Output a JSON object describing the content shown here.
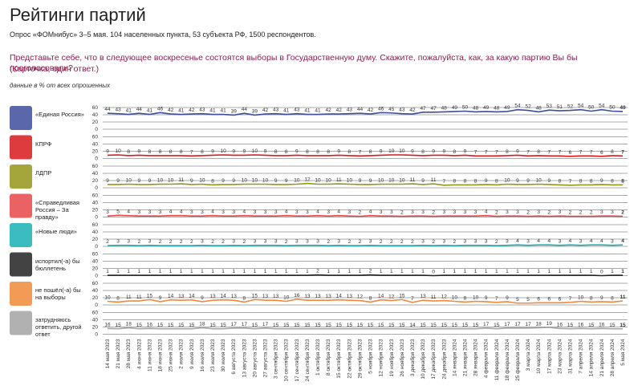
{
  "chart_data": {
    "type": "line",
    "title": "Рейтинги партий",
    "subtitle": "Опрос «ФОМнибус» 3–5 мая. 104 населенных пункта, 53 субъекта РФ, 1500 респондентов.",
    "question": "Представьте себе, что в следующее воскресенье состоятся выборы в Государственную думу. Скажите, пожалуйста, как, за какую партию Вы бы проголосовали?",
    "note": "(Карточка, один ответ.)",
    "data_note": "данные в % от всех опрошенных",
    "categories": [
      "14 мая 2023",
      "21 мая 2023",
      "28 мая 2023",
      "4 июня 2023",
      "11 июня 2023",
      "18 июня 2023",
      "25 июня 2023",
      "2 июля 2023",
      "9 июля 2023",
      "16 июля 2023",
      "23 июля 2023",
      "30 июля 2023",
      "6 августа 2023",
      "13 августа 2023",
      "20 августа 2023",
      "27 августа 2023",
      "3 сентября 2023",
      "10 сентября 2023",
      "17 сентября 2023",
      "24 сентября 2023",
      "1 октября 2023",
      "8 октября 2023",
      "15 октября 2023",
      "22 октября 2023",
      "29 октября 2023",
      "5 ноября 2023",
      "12 ноября 2023",
      "19 ноября 2023",
      "26 ноября 2023",
      "3 декабря 2023",
      "10 декабря 2023",
      "17 декабря 2023",
      "24 декабря 2023",
      "14 января 2024",
      "21 января 2024",
      "28 января 2024",
      "4 февраля 2024",
      "11 февраля 2024",
      "18 февраля 2024",
      "25 февраля 2024",
      "3 марта 2024",
      "10 марта 2024",
      "17 марта 2024",
      "23 марта 2024",
      "31 марта 2024",
      "7 апреля 2024",
      "14 апреля 2024",
      "21 апреля 2024",
      "28 апреля 2024",
      "5 мая 2024"
    ],
    "ylim": [
      0,
      60
    ],
    "yticks": [
      0,
      20,
      40,
      60
    ],
    "series": [
      {
        "name": "«Единая Россия»",
        "color": "#3d4c9c",
        "values": [
          44,
          43,
          41,
          44,
          41,
          46,
          42,
          41,
          42,
          43,
          41,
          41,
          39,
          44,
          39,
          42,
          43,
          41,
          43,
          41,
          41,
          42,
          42,
          43,
          44,
          42,
          46,
          45,
          43,
          42,
          47,
          47,
          48,
          49,
          50,
          48,
          49,
          48,
          49,
          54,
          52,
          48,
          53,
          51,
          52,
          54,
          50,
          54,
          50,
          49
        ]
      },
      {
        "name": "КПРФ",
        "color": "#d7191c",
        "values": [
          9,
          10,
          8,
          9,
          8,
          8,
          8,
          8,
          7,
          8,
          9,
          10,
          9,
          9,
          10,
          9,
          8,
          8,
          9,
          8,
          8,
          8,
          9,
          8,
          7,
          8,
          9,
          10,
          10,
          9,
          8,
          9,
          9,
          8,
          9,
          7,
          7,
          7,
          8,
          9,
          7,
          8,
          7,
          7,
          6,
          7,
          7,
          6,
          8,
          7
        ]
      },
      {
        "name": "ЛДПР",
        "color": "#94961a",
        "values": [
          9,
          9,
          10,
          9,
          9,
          10,
          10,
          11,
          9,
          10,
          8,
          9,
          9,
          10,
          10,
          10,
          9,
          9,
          10,
          12,
          10,
          10,
          11,
          10,
          9,
          9,
          10,
          10,
          10,
          11,
          9,
          11,
          7,
          8,
          8,
          8,
          9,
          8,
          10,
          9,
          9,
          10,
          9,
          8,
          7,
          8,
          8,
          9,
          8,
          8
        ]
      },
      {
        "name": "«Справедливая Россия – За правду»",
        "color": "#e8474a",
        "values": [
          3,
          5,
          4,
          3,
          3,
          3,
          4,
          4,
          3,
          3,
          4,
          3,
          3,
          4,
          3,
          3,
          3,
          4,
          3,
          3,
          4,
          3,
          4,
          3,
          2,
          4,
          3,
          3,
          2,
          3,
          3,
          2,
          3,
          3,
          3,
          3,
          4,
          2,
          3,
          3,
          2,
          3,
          2,
          3,
          2,
          2,
          2,
          3,
          3,
          2
        ]
      },
      {
        "name": "«Новые люди»",
        "color": "#19b2b5",
        "values": [
          2,
          3,
          3,
          2,
          3,
          2,
          2,
          2,
          2,
          3,
          2,
          2,
          3,
          2,
          3,
          3,
          3,
          2,
          3,
          3,
          3,
          2,
          3,
          2,
          2,
          3,
          2,
          2,
          2,
          2,
          3,
          2,
          3,
          2,
          3,
          3,
          3,
          2,
          3,
          4,
          3,
          4,
          4,
          3,
          4,
          3,
          4,
          4,
          3,
          4
        ]
      },
      {
        "name": "испортил(-а) бы бюллетень",
        "color": "#222222",
        "values": [
          1,
          1,
          1,
          1,
          1,
          1,
          1,
          1,
          1,
          1,
          1,
          1,
          1,
          1,
          1,
          1,
          1,
          1,
          1,
          1,
          2,
          1,
          1,
          1,
          1,
          2,
          1,
          1,
          1,
          1,
          1,
          0,
          1,
          1,
          1,
          1,
          1,
          1,
          1,
          1,
          1,
          1,
          1,
          1,
          1,
          1,
          1,
          0,
          1,
          1
        ]
      },
      {
        "name": "не пошёл(-а) бы на выборы",
        "color": "#f0893a",
        "values": [
          10,
          8,
          11,
          11,
          15,
          9,
          14,
          13,
          14,
          9,
          13,
          14,
          13,
          8,
          15,
          13,
          13,
          10,
          16,
          13,
          13,
          13,
          14,
          13,
          12,
          8,
          14,
          12,
          15,
          7,
          13,
          11,
          12,
          10,
          8,
          10,
          9,
          7,
          9,
          5,
          5,
          6,
          6,
          6,
          7,
          10,
          8,
          9,
          8,
          11
        ]
      },
      {
        "name": "затрудняюсь ответить, другой ответ",
        "color": "#a3a3a3",
        "values": [
          16,
          15,
          18,
          15,
          16,
          15,
          15,
          15,
          15,
          18,
          15,
          15,
          17,
          17,
          15,
          17,
          15,
          15,
          15,
          15,
          15,
          15,
          15,
          15,
          15,
          15,
          15,
          15,
          15,
          14,
          15,
          15,
          15,
          15,
          15,
          15,
          17,
          15,
          17,
          17,
          17,
          18,
          19,
          16,
          15,
          16,
          15,
          16,
          15,
          15
        ]
      }
    ]
  }
}
